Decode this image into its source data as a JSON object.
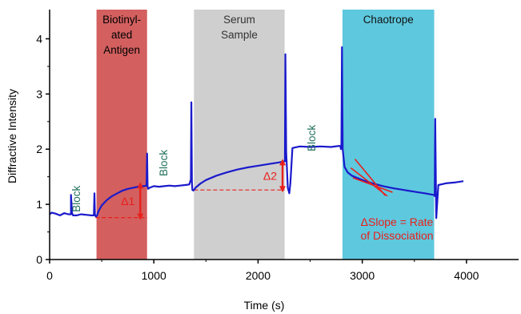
{
  "chart_data": {
    "type": "line",
    "title": "",
    "xlabel": "Time (s)",
    "ylabel": "Diffractive Intensity",
    "xlim": [
      0,
      4500
    ],
    "ylim": [
      0,
      4.5
    ],
    "xticks": [
      0,
      1000,
      2000,
      3000,
      4000
    ],
    "yticks": [
      0,
      1,
      2,
      3,
      4
    ],
    "grid": false,
    "legend": "none",
    "colors": {
      "trace": "#1a1acc",
      "annotation": "#e8201c",
      "block_label": "#1e6e5a",
      "antigen_band": "#d35f5f",
      "serum_band": "#cfcfcf",
      "chaotrope_band": "#5ec8de",
      "axis": "#000000"
    },
    "regions": [
      {
        "id": "antigen",
        "x0": 450,
        "x1": 935,
        "label_lines": [
          "Biotinyl-",
          "ated",
          "Antigen"
        ]
      },
      {
        "id": "serum",
        "x0": 1385,
        "x1": 2255,
        "label_lines": [
          "Serum",
          "Sample"
        ]
      },
      {
        "id": "chaotrope",
        "x0": 2810,
        "x1": 3690,
        "label_lines": [
          "Chaotrope"
        ]
      }
    ],
    "block_labels": [
      {
        "id": "block-1",
        "x": 290,
        "y": 1.1,
        "text": "Block"
      },
      {
        "id": "block-2",
        "x": 1130,
        "y": 1.75,
        "text": "Block"
      },
      {
        "id": "block-3",
        "x": 2550,
        "y": 2.2,
        "text": "Block"
      }
    ],
    "series": [
      {
        "x": [
          0,
          20,
          60,
          100,
          140,
          180,
          205,
          205,
          215,
          225,
          260,
          300,
          350,
          400,
          425,
          430,
          435,
          440,
          445,
          455,
          470,
          500,
          550,
          600,
          650,
          700,
          750,
          800,
          850,
          900,
          930,
          935,
          940,
          945,
          960,
          1000,
          1050,
          1100,
          1150,
          1200,
          1250,
          1300,
          1340,
          1355,
          1360,
          1365,
          1370,
          1380,
          1400,
          1450,
          1500,
          1600,
          1700,
          1800,
          1900,
          2000,
          2100,
          2200,
          2250,
          2258,
          2262,
          2270,
          2285,
          2300,
          2310,
          2330,
          2400,
          2500,
          2600,
          2700,
          2780,
          2790,
          2795,
          2800,
          2805,
          2812,
          2830,
          2860,
          2900,
          3000,
          3100,
          3200,
          3300,
          3400,
          3500,
          3600,
          3690,
          3695,
          3700,
          3710,
          3730,
          3800,
          3900,
          3970
        ],
        "y": [
          0.82,
          0.85,
          0.83,
          0.8,
          0.84,
          0.82,
          0.82,
          1.17,
          0.84,
          0.8,
          0.8,
          0.82,
          0.81,
          0.8,
          0.8,
          1.2,
          0.82,
          0.79,
          0.78,
          0.8,
          0.88,
          0.98,
          1.08,
          1.15,
          1.2,
          1.25,
          1.28,
          1.3,
          1.32,
          1.33,
          1.34,
          1.92,
          1.33,
          1.28,
          1.3,
          1.33,
          1.32,
          1.33,
          1.34,
          1.33,
          1.34,
          1.35,
          1.36,
          1.45,
          2.85,
          1.4,
          1.26,
          1.25,
          1.3,
          1.38,
          1.44,
          1.52,
          1.58,
          1.63,
          1.67,
          1.7,
          1.73,
          1.76,
          1.78,
          1.78,
          3.72,
          1.95,
          1.3,
          1.2,
          1.38,
          2.02,
          2.05,
          2.04,
          2.05,
          2.04,
          2.06,
          2.05,
          2.0,
          2.1,
          3.85,
          2.0,
          1.68,
          1.58,
          1.52,
          1.44,
          1.38,
          1.33,
          1.29,
          1.26,
          1.23,
          1.2,
          1.17,
          1.15,
          2.55,
          0.75,
          1.35,
          1.38,
          1.4,
          1.42
        ]
      }
    ],
    "annotations": [
      {
        "id": "delta-1",
        "text": "Δ1",
        "x": 870,
        "y_from": 0.76,
        "y_to": 1.36,
        "baseline_x0": 440,
        "baseline_x1": 935
      },
      {
        "id": "delta-2",
        "text": "Δ2",
        "x": 2235,
        "y_from": 1.26,
        "y_to": 1.78,
        "baseline_x0": 1385,
        "baseline_x1": 2255
      }
    ],
    "slope_lines": [
      {
        "x0": 2930,
        "y0": 1.82,
        "x1": 3220,
        "y1": 1.16
      },
      {
        "x0": 2910,
        "y0": 1.48,
        "x1": 3290,
        "y1": 1.22
      },
      {
        "x0": 2890,
        "y0": 1.66,
        "x1": 3240,
        "y1": 1.15
      }
    ],
    "slope_label_lines": [
      "ΔSlope = Rate",
      "of Dissociation"
    ]
  }
}
